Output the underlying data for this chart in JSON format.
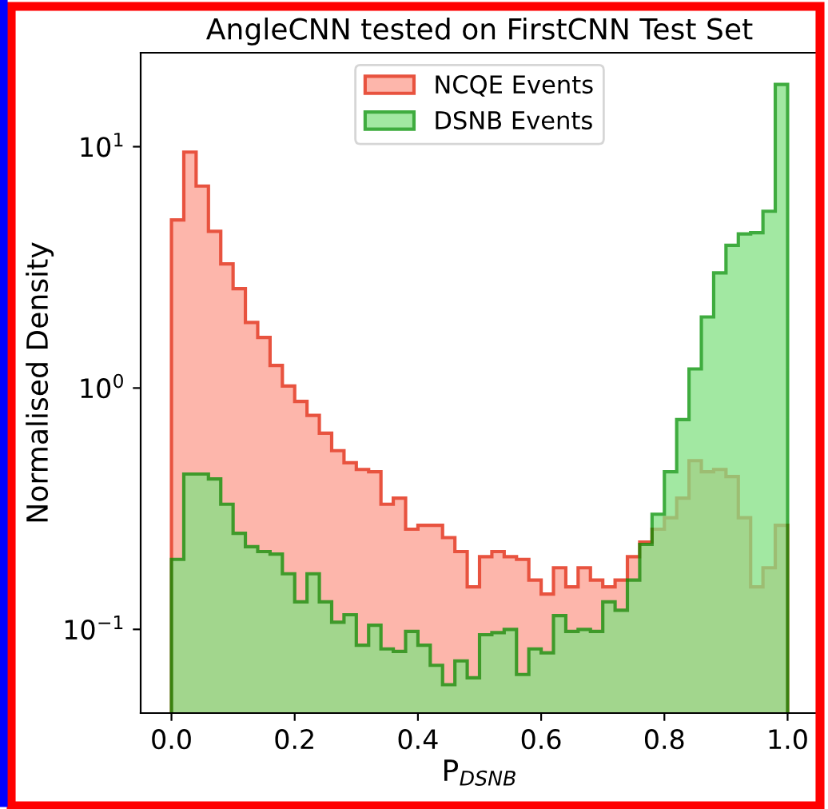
{
  "chart_data": {
    "type": "histogram",
    "title": "AngleCNN tested on FirstCNN Test Set",
    "xlabel": "P$_{DSNB}$",
    "ylabel": "Normalised Density",
    "bins": [
      0.0,
      0.02,
      0.04,
      0.06,
      0.08,
      0.1,
      0.12,
      0.14,
      0.16,
      0.18,
      0.2,
      0.22,
      0.24,
      0.26,
      0.28,
      0.3,
      0.32,
      0.34,
      0.36,
      0.38,
      0.4,
      0.42,
      0.44,
      0.46,
      0.48,
      0.5,
      0.52,
      0.54,
      0.56,
      0.58,
      0.6,
      0.62,
      0.64,
      0.66,
      0.68,
      0.7,
      0.72,
      0.74,
      0.76,
      0.78,
      0.8,
      0.82,
      0.84,
      0.86,
      0.88,
      0.9,
      0.92,
      0.94,
      0.96,
      0.98,
      1.0
    ],
    "series": [
      {
        "name": "NCQE Events",
        "color": "#fd9e8f",
        "values": [
          4.97,
          9.5,
          6.87,
          4.46,
          3.27,
          2.58,
          1.87,
          1.62,
          1.24,
          1.02,
          0.88,
          0.77,
          0.65,
          0.55,
          0.49,
          0.46,
          0.45,
          0.33,
          0.35,
          0.26,
          0.27,
          0.27,
          0.24,
          0.21,
          0.15,
          0.2,
          0.21,
          0.2,
          0.195,
          0.16,
          0.14,
          0.18,
          0.15,
          0.18,
          0.16,
          0.15,
          0.16,
          0.2,
          0.23,
          0.26,
          0.29,
          0.35,
          0.5,
          0.45,
          0.46,
          0.43,
          0.29,
          0.15,
          0.18,
          0.27
        ]
      },
      {
        "name": "DSNB Events",
        "color": "#84e184",
        "values": [
          0.195,
          0.44,
          0.44,
          0.42,
          0.33,
          0.25,
          0.22,
          0.21,
          0.205,
          0.17,
          0.13,
          0.17,
          0.13,
          0.107,
          0.115,
          0.086,
          0.104,
          0.083,
          0.081,
          0.098,
          0.086,
          0.071,
          0.059,
          0.074,
          0.063,
          0.095,
          0.097,
          0.1,
          0.065,
          0.083,
          0.08,
          0.114,
          0.098,
          0.1,
          0.098,
          0.13,
          0.12,
          0.16,
          0.225,
          0.3,
          0.45,
          0.74,
          1.2,
          1.97,
          3.0,
          3.9,
          4.35,
          4.4,
          5.4,
          18.1
        ]
      }
    ],
    "log": "y",
    "xlim": [
      -0.05,
      1.05
    ],
    "ylim": [
      0.045,
      24.5
    ],
    "xticks": [
      {
        "value": 0,
        "label": "0.0"
      },
      0.2,
      0.4,
      0.6,
      0.8,
      {
        "value": 1,
        "label": "1.0"
      }
    ],
    "yticks": [
      {
        "value": 0.1,
        "label": "10$^{−1}$"
      },
      {
        "value": 1,
        "label": "10$^{0}$"
      },
      {
        "value": 10,
        "label": "10$^{1}$"
      }
    ],
    "legend": "top center",
    "grid": false
  }
}
